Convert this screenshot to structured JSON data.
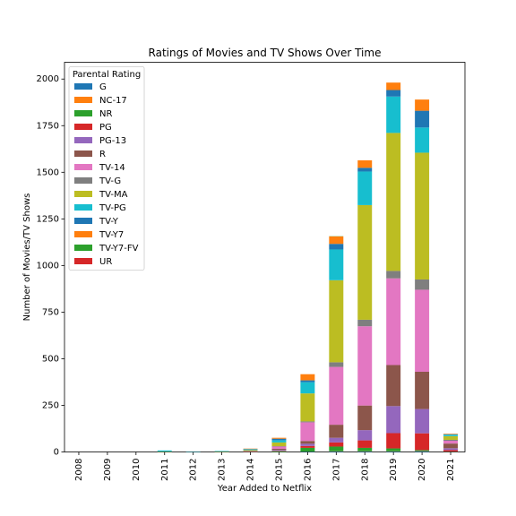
{
  "chart_data": {
    "type": "bar",
    "stacked": true,
    "title": "Ratings of Movies and TV Shows Over Time",
    "xlabel": "Year Added to Netflix",
    "ylabel": "Number of Movies/TV Shows",
    "ylim": [
      0,
      2090
    ],
    "yticks": [
      0,
      250,
      500,
      750,
      1000,
      1250,
      1500,
      1750,
      2000
    ],
    "legend_title": "Parental Rating",
    "legend_position": "upper-left",
    "grid": false,
    "categories": [
      "2008",
      "2009",
      "2010",
      "2011",
      "2012",
      "2013",
      "2014",
      "2015",
      "2016",
      "2017",
      "2018",
      "2019",
      "2020",
      "2021"
    ],
    "series": [
      {
        "name": "G",
        "color": "#1f77b4",
        "values": [
          0,
          0,
          0,
          0,
          0,
          0,
          0,
          0,
          2,
          3,
          3,
          3,
          4,
          1
        ]
      },
      {
        "name": "NC-17",
        "color": "#ff7f0e",
        "values": [
          0,
          0,
          0,
          0,
          0,
          0,
          0,
          0,
          0,
          1,
          1,
          1,
          1,
          0
        ]
      },
      {
        "name": "NR",
        "color": "#2ca02c",
        "values": [
          0,
          0,
          0,
          0,
          0,
          0,
          0,
          4,
          20,
          25,
          18,
          15,
          5,
          1
        ]
      },
      {
        "name": "PG",
        "color": "#d62728",
        "values": [
          0,
          0,
          0,
          0,
          0,
          0,
          0,
          2,
          10,
          22,
          40,
          82,
          90,
          8
        ]
      },
      {
        "name": "PG-13",
        "color": "#9467bd",
        "values": [
          0,
          0,
          0,
          0,
          0,
          0,
          0,
          5,
          12,
          25,
          55,
          145,
          130,
          10
        ]
      },
      {
        "name": "R",
        "color": "#8c564b",
        "values": [
          0,
          0,
          0,
          0,
          0,
          0,
          2,
          6,
          15,
          70,
          132,
          220,
          200,
          25
        ]
      },
      {
        "name": "TV-14",
        "color": "#e377c2",
        "values": [
          0,
          0,
          0,
          0,
          0,
          0,
          3,
          12,
          100,
          310,
          425,
          465,
          440,
          15
        ]
      },
      {
        "name": "TV-G",
        "color": "#7f7f7f",
        "values": [
          0,
          0,
          0,
          0,
          0,
          0,
          0,
          2,
          5,
          25,
          35,
          40,
          55,
          5
        ]
      },
      {
        "name": "TV-MA",
        "color": "#bcbd22",
        "values": [
          0,
          0,
          0,
          2,
          0,
          2,
          5,
          20,
          150,
          440,
          615,
          740,
          680,
          20
        ]
      },
      {
        "name": "TV-PG",
        "color": "#17becf",
        "values": [
          0,
          0,
          0,
          6,
          2,
          3,
          4,
          12,
          60,
          165,
          180,
          195,
          135,
          8
        ]
      },
      {
        "name": "TV-Y",
        "color": "#1f77b4",
        "values": [
          0,
          0,
          0,
          0,
          0,
          0,
          2,
          8,
          10,
          30,
          20,
          35,
          90,
          2
        ]
      },
      {
        "name": "TV-Y7",
        "color": "#ff7f0e",
        "values": [
          0,
          0,
          0,
          0,
          0,
          0,
          2,
          5,
          33,
          40,
          40,
          40,
          60,
          3
        ]
      },
      {
        "name": "TV-Y7-FV",
        "color": "#2ca02c",
        "values": [
          0,
          0,
          0,
          0,
          0,
          0,
          0,
          0,
          0,
          1,
          0,
          0,
          0,
          0
        ]
      },
      {
        "name": "UR",
        "color": "#d62728",
        "values": [
          0,
          0,
          0,
          0,
          0,
          0,
          0,
          0,
          0,
          0,
          0,
          0,
          0,
          0
        ]
      }
    ]
  }
}
